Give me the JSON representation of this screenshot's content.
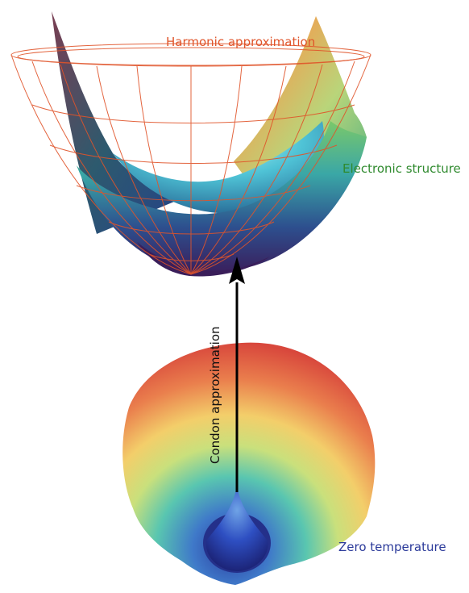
{
  "labels": {
    "harmonic": "Harmonic approximation",
    "electronic": "Electronic structure",
    "condon": "Condon approximation",
    "zero": "Zero temperature"
  },
  "colors": {
    "harmonic": "#e0542a",
    "electronic": "#2f8a2e",
    "zero": "#2b3a9a",
    "arrow": "#000000"
  }
}
